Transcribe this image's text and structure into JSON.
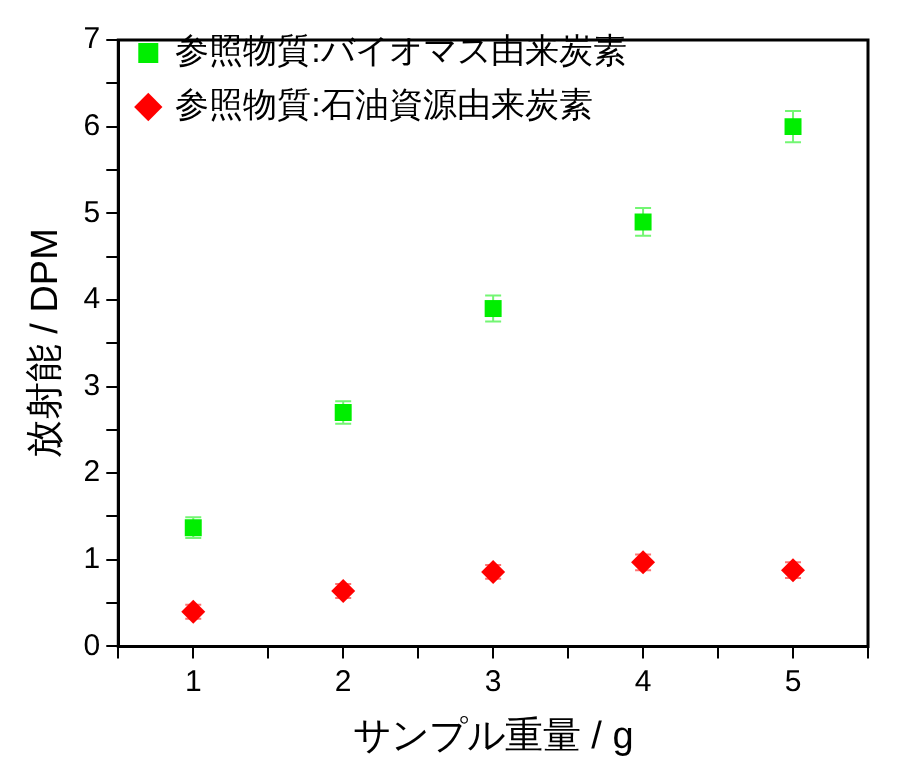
{
  "chart_data": {
    "type": "scatter",
    "xlabel": "サンプル重量 / g",
    "ylabel": "放射能 / DPM",
    "x": [
      1,
      2,
      3,
      4,
      5
    ],
    "series": [
      {
        "name": "参照物質:バイオマス由来炭素",
        "color": "#00ee00",
        "marker": "square",
        "values": [
          1.37,
          2.7,
          3.9,
          4.9,
          6.0
        ],
        "errors": [
          0.12,
          0.13,
          0.15,
          0.16,
          0.18
        ]
      },
      {
        "name": "参照物質:石油資源由来炭素",
        "color": "#ff0000",
        "marker": "diamond",
        "values": [
          0.4,
          0.64,
          0.86,
          0.97,
          0.88
        ],
        "errors": [
          0.08,
          0.08,
          0.08,
          0.09,
          0.09
        ]
      }
    ],
    "xlim": [
      0.5,
      5.5
    ],
    "xticks": [
      {
        "value": 0.5,
        "label": null
      },
      1,
      {
        "value": 1.5,
        "label": null
      },
      2,
      {
        "value": 2.5,
        "label": null
      },
      3,
      {
        "value": 3.5,
        "label": null
      },
      4,
      {
        "value": 4.5,
        "label": null
      },
      5,
      {
        "value": 5.5,
        "label": null
      }
    ],
    "ylim": [
      0,
      7
    ],
    "yticks": [
      0,
      {
        "value": 0.5,
        "label": null
      },
      1,
      {
        "value": 1.5,
        "label": null
      },
      2,
      {
        "value": 2.5,
        "label": null
      },
      3,
      {
        "value": 3.5,
        "label": null
      },
      4,
      {
        "value": 4.5,
        "label": null
      },
      5,
      {
        "value": 5.5,
        "label": null
      },
      6,
      {
        "value": 6.5,
        "label": null
      },
      7
    ],
    "grid": false,
    "legend": "top left"
  }
}
